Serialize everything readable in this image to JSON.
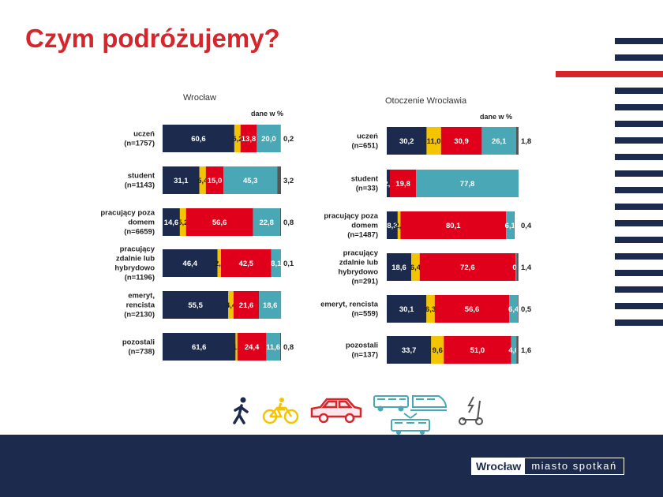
{
  "page": {
    "title": "Czym podróżujemy?"
  },
  "colors": {
    "walk": "#1c2a4d",
    "bike": "#f5c400",
    "car": "#e0001b",
    "transit": "#4aa8b6",
    "other": "#555555",
    "scooter": "#b39bc8",
    "title": "#d7262b",
    "footer": "#1c2a4d"
  },
  "legend_icons": [
    "walking-person-icon",
    "bicycle-icon",
    "car-icon",
    "bus-icon",
    "train-icon",
    "tram-icon",
    "e-scooter-icon"
  ],
  "footer": {
    "logo_city": "Wrocław",
    "logo_tagline": "miasto spotkań"
  },
  "chart_data": [
    {
      "type": "bar",
      "title": "Wrocław",
      "unit_label": "dane w %",
      "categories": [
        [
          "uczeń",
          "(n=1757)"
        ],
        [
          "student",
          "(n=1143)"
        ],
        [
          "pracujący poza",
          "domem",
          "(n=6659)"
        ],
        [
          "pracujący",
          "zdalnie lub",
          "hybrydowo",
          "(n=1196)"
        ],
        [
          "emeryt,",
          "rencista",
          "(n=2130)"
        ],
        [
          "pozostali",
          "(n=738)"
        ]
      ],
      "series_colors": [
        "#1c2a4d",
        "#f5c400",
        "#e0001b",
        "#4aa8b6",
        "#555555"
      ],
      "rows": [
        [
          {
            "v": 60.6,
            "t": "60,6"
          },
          {
            "v": 5.2,
            "t": "5,2"
          },
          {
            "v": 13.8,
            "t": "13,8"
          },
          {
            "v": 20.0,
            "t": "20,0"
          },
          {
            "v": 0.2,
            "t": "0,2"
          }
        ],
        [
          {
            "v": 31.1,
            "t": "31,1"
          },
          {
            "v": 5.4,
            "t": "5,4"
          },
          {
            "v": 15.0,
            "t": "15,0"
          },
          {
            "v": 45.3,
            "t": "45,3"
          },
          {
            "v": 3.2,
            "t": "3,2"
          }
        ],
        [
          {
            "v": 14.6,
            "t": "14,6"
          },
          {
            "v": 5.2,
            "t": "5,2"
          },
          {
            "v": 56.6,
            "t": "56,6"
          },
          {
            "v": 22.8,
            "t": "22,8"
          },
          {
            "v": 0.8,
            "t": "0,8"
          }
        ],
        [
          {
            "v": 46.4,
            "t": "46,4"
          },
          {
            "v": 2.9,
            "t": "2,9"
          },
          {
            "v": 42.5,
            "t": "42,5"
          },
          {
            "v": 8.1,
            "t": "8,1"
          },
          {
            "v": 0.1,
            "t": "0,1"
          }
        ],
        [
          {
            "v": 55.5,
            "t": "55,5"
          },
          {
            "v": 4.4,
            "t": "4,4"
          },
          {
            "v": 21.6,
            "t": "21,6"
          },
          {
            "v": 18.6,
            "t": "18,6"
          },
          {
            "v": 0,
            "t": ""
          }
        ],
        [
          {
            "v": 61.6,
            "t": "61,6"
          },
          {
            "v": 1.6,
            "t": "1,6"
          },
          {
            "v": 24.4,
            "t": "24,4"
          },
          {
            "v": 11.6,
            "t": "11,6"
          },
          {
            "v": 0.8,
            "t": "0,8"
          }
        ]
      ]
    },
    {
      "type": "bar",
      "title": "Otoczenie Wrocławia",
      "unit_label": "dane w %",
      "categories": [
        [
          "uczeń",
          "(n=651)"
        ],
        [
          "student",
          "(n=33)"
        ],
        [
          "pracujący poza",
          "domem",
          "(n=1487)"
        ],
        [
          "pracujący",
          "zdalnie lub",
          "hybrydowo",
          "(n=291)"
        ],
        [
          "emeryt, rencista",
          "(n=559)"
        ],
        [
          "pozostali",
          "(n=137)"
        ]
      ],
      "series_colors": [
        "#1c2a4d",
        "#f5c400",
        "#e0001b",
        "#4aa8b6",
        "#555555"
      ],
      "rows": [
        [
          {
            "v": 30.2,
            "t": "30,2"
          },
          {
            "v": 11.0,
            "t": "11,0"
          },
          {
            "v": 30.9,
            "t": "30,9"
          },
          {
            "v": 26.1,
            "t": "26,1"
          },
          {
            "v": 1.8,
            "t": "1,8"
          }
        ],
        [
          {
            "v": 2.4,
            "t": "2,4"
          },
          {
            "v": 0,
            "t": ""
          },
          {
            "v": 19.8,
            "t": "19,8"
          },
          {
            "v": 77.8,
            "t": "77,8"
          },
          {
            "v": 0,
            "t": ""
          }
        ],
        [
          {
            "v": 8.3,
            "t": "8,3"
          },
          {
            "v": 2.1,
            "t": "2,1"
          },
          {
            "v": 80.1,
            "t": "80,1"
          },
          {
            "v": 6.1,
            "t": "6,1"
          },
          {
            "v": 0.4,
            "t": "0,4"
          }
        ],
        [
          {
            "v": 18.6,
            "t": "18,6"
          },
          {
            "v": 6.4,
            "t": "6,4"
          },
          {
            "v": 72.6,
            "t": "72,6"
          },
          {
            "v": 0.9,
            "t": "0,9"
          },
          {
            "v": 1.4,
            "t": "1,4"
          }
        ],
        [
          {
            "v": 30.1,
            "t": "30,1"
          },
          {
            "v": 6.3,
            "t": "6,3"
          },
          {
            "v": 56.6,
            "t": "56,6"
          },
          {
            "v": 6.4,
            "t": "6,4"
          },
          {
            "v": 0.5,
            "t": "0,5"
          }
        ],
        [
          {
            "v": 33.7,
            "t": "33,7"
          },
          {
            "v": 9.6,
            "t": "9,6"
          },
          {
            "v": 51.0,
            "t": "51,0"
          },
          {
            "v": 4.0,
            "t": "4,0"
          },
          {
            "v": 1.6,
            "t": "1,6"
          }
        ]
      ]
    }
  ]
}
